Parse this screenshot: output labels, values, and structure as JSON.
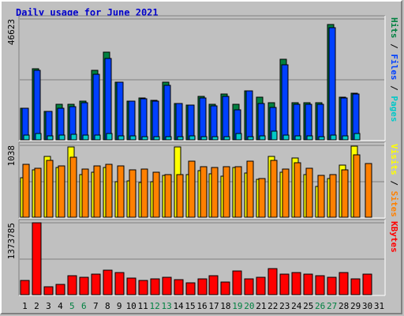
{
  "chart_data": {
    "type": "bar",
    "title": "Daily usage for June 2021",
    "weekend_day_color": "#008040",
    "weekday_day_color": "#000000",
    "categories": [
      "1",
      "2",
      "3",
      "4",
      "5",
      "6",
      "7",
      "8",
      "9",
      "10",
      "11",
      "12",
      "13",
      "14",
      "15",
      "16",
      "17",
      "18",
      "19",
      "20",
      "21",
      "22",
      "23",
      "24",
      "25",
      "26",
      "27",
      "28",
      "29",
      "30",
      "31"
    ],
    "weekend_days": [
      "5",
      "6",
      "12",
      "13",
      "19",
      "20",
      "26",
      "27"
    ],
    "panels": [
      {
        "name": "hits-files-pages",
        "max_label": "46623",
        "ymax": 46623,
        "right_label": [
          {
            "text": "Pages",
            "color": "#00c8c8"
          },
          {
            "text": " / ",
            "color": "#000000"
          },
          {
            "text": "Files",
            "color": "#0040ff"
          },
          {
            "text": " / ",
            "color": "#000000"
          },
          {
            "text": "Hits",
            "color": "#008040"
          }
        ],
        "series": [
          {
            "name": "Hits",
            "color": "#008040",
            "values": [
              12500,
              27500,
              11300,
              13800,
              13800,
              15100,
              26900,
              34000,
              22300,
              15000,
              16200,
              15300,
              22300,
              14200,
              13500,
              17000,
              13800,
              17800,
              13800,
              19000,
              16500,
              14600,
              31300,
              14500,
              14500,
              14500,
              44400,
              16500,
              18300,
              null,
              null
            ]
          },
          {
            "name": "Files",
            "color": "#0040ff",
            "values": [
              12500,
              27000,
              11300,
              12500,
              13000,
              14600,
              25400,
              31500,
              22300,
              15000,
              16000,
              15000,
              21300,
              14200,
              13500,
              16400,
              13300,
              17000,
              11700,
              19000,
              14200,
              12700,
              29000,
              14000,
              14000,
              14000,
              43300,
              16200,
              18000,
              null,
              null
            ]
          },
          {
            "name": "Pages",
            "color": "#00c8c8",
            "values": [
              2000,
              2600,
              1700,
              2000,
              2300,
              2000,
              2000,
              2600,
              1700,
              1700,
              1500,
              1500,
              1500,
              1500,
              1700,
              1500,
              1500,
              1500,
              2800,
              1500,
              1700,
              3500,
              2000,
              1700,
              1700,
              1500,
              2000,
              1700,
              2600,
              null,
              null
            ]
          }
        ]
      },
      {
        "name": "visits-sites",
        "max_label": "1038",
        "ymax": 1038,
        "right_label": [
          {
            "text": "Sites",
            "color": "#ff8000"
          },
          {
            "text": " / ",
            "color": "#000000"
          },
          {
            "text": "Visits",
            "color": "#ffff00"
          }
        ],
        "series": [
          {
            "name": "Visits",
            "color": "#ffff00",
            "values": [
              570,
              690,
              880,
              720,
              1010,
              620,
              650,
              720,
              520,
              530,
              510,
              520,
              610,
              1010,
              620,
              680,
              630,
              600,
              720,
              640,
              550,
              880,
              660,
              860,
              620,
              450,
              560,
              760,
              1030,
              null,
              null
            ]
          },
          {
            "name": "Sites",
            "color": "#ff8000",
            "values": [
              770,
              710,
              820,
              740,
              870,
              700,
              750,
              770,
              740,
              690,
              700,
              660,
              620,
              620,
              810,
              730,
              720,
              730,
              730,
              810,
              560,
              820,
              700,
              790,
              710,
              610,
              620,
              690,
              900,
              780,
              null
            ]
          }
        ]
      },
      {
        "name": "kbytes",
        "max_label": "1373785",
        "ymax": 1373785,
        "right_label": [
          {
            "text": "KBytes",
            "color": "#ff0000"
          }
        ],
        "series": [
          {
            "name": "KBytes",
            "color": "#ff0000",
            "values": [
              290000,
              1370000,
              170000,
              210000,
              370000,
              340000,
              410000,
              480000,
              430000,
              330000,
              280000,
              310000,
              350000,
              300000,
              240000,
              320000,
              370000,
              260000,
              460000,
              310000,
              350000,
              510000,
              400000,
              440000,
              400000,
              370000,
              350000,
              430000,
              320000,
              400000,
              null
            ]
          }
        ]
      }
    ]
  }
}
